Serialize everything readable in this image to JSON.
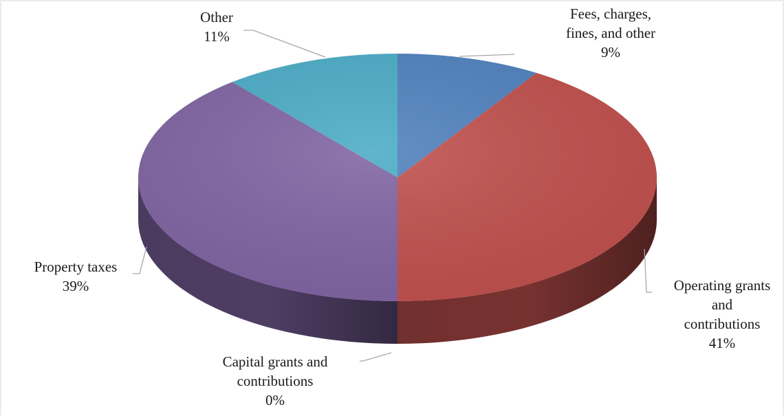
{
  "chart_data": {
    "type": "pie",
    "style": "3d",
    "title": "",
    "slices": [
      {
        "label_lines": [
          "Fees, charges,",
          "fines, and other"
        ],
        "value": 9,
        "value_label": "9%",
        "color": "#4f81bd"
      },
      {
        "label_lines": [
          "Operating grants",
          "and",
          "contributions"
        ],
        "value": 41,
        "value_label": "41%",
        "color": "#c0504d"
      },
      {
        "label_lines": [
          "Capital grants and",
          "contributions"
        ],
        "value": 0,
        "value_label": "0%",
        "color": "#9bbb59"
      },
      {
        "label_lines": [
          "Property taxes"
        ],
        "value": 39,
        "value_label": "39%",
        "color": "#8064a2"
      },
      {
        "label_lines": [
          "Other"
        ],
        "value": 11,
        "value_label": "11%",
        "color": "#4bacc6"
      }
    ],
    "legend": "none",
    "data_labels": "outside with leader lines"
  }
}
